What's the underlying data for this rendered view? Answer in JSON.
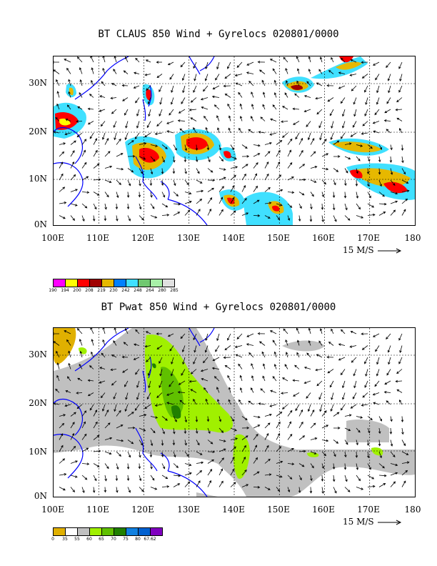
{
  "panels": [
    {
      "title": "BT CLAUS 850 Wind + Gyrelocs 020801/0000",
      "lat_labels": [
        "30N",
        "20N",
        "10N",
        "0N"
      ],
      "lon_labels": [
        "100E",
        "110E",
        "120E",
        "130E",
        "140E",
        "150E",
        "160E",
        "170E",
        "180"
      ],
      "vector_scale": "15 M/S",
      "legend_values": [
        "190",
        "194",
        "200",
        "208",
        "219",
        "230",
        "242",
        "248",
        "264",
        "280",
        "285"
      ],
      "legend_colors": [
        "#ff00ff",
        "#ffff00",
        "#ff0000",
        "#a00000",
        "#e6b800",
        "#0080ff",
        "#40e0ff",
        "#70c870",
        "#a8f0a8",
        "#e0e0e0"
      ]
    },
    {
      "title": "BT Pwat 850 Wind + Gyrelocs 020801/0000",
      "lat_labels": [
        "30N",
        "20N",
        "10N",
        "0N"
      ],
      "lon_labels": [
        "100E",
        "110E",
        "120E",
        "130E",
        "140E",
        "150E",
        "160E",
        "170E",
        "180"
      ],
      "vector_scale": "15 M/S",
      "legend_values": [
        "0",
        "35",
        "55",
        "60",
        "65",
        "70",
        "75",
        "80",
        "67.62"
      ],
      "legend_colors": [
        "#e0b000",
        "#ffffff",
        "#c0c0c0",
        "#a0f000",
        "#60c000",
        "#208000",
        "#1080e0",
        "#0060d0",
        "#8000c0"
      ]
    }
  ]
}
